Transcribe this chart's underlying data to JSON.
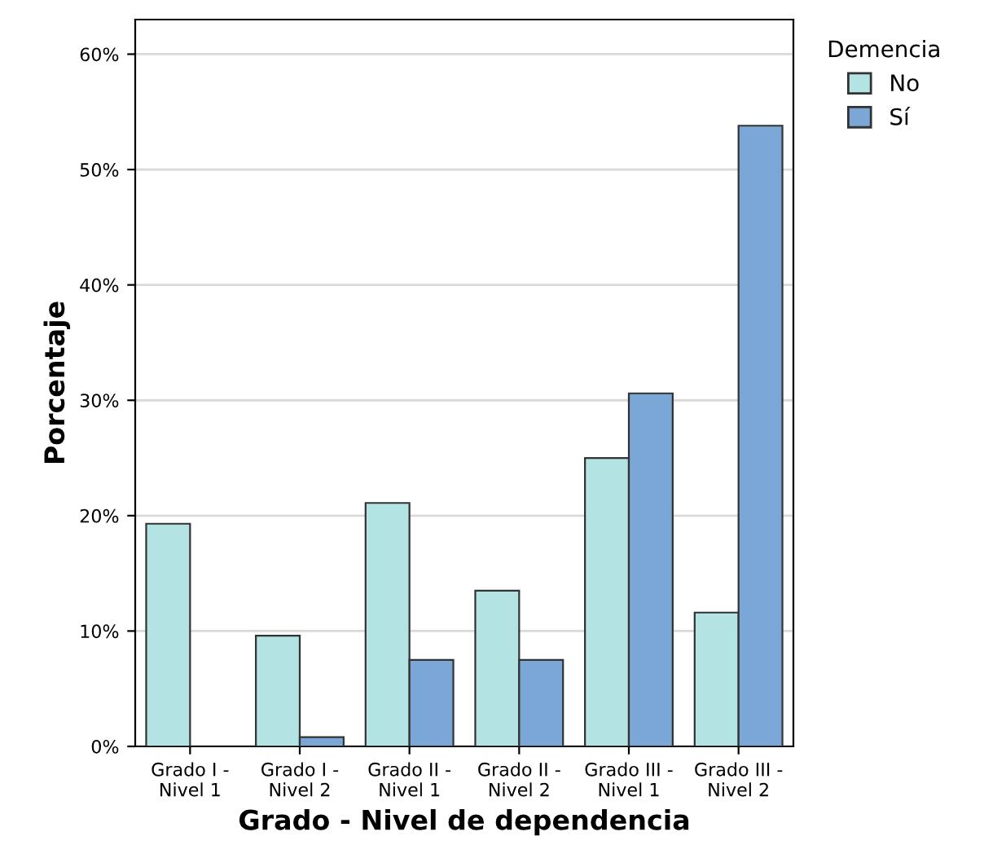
{
  "chart_data": {
    "type": "bar",
    "xlabel": "Grado - Nivel de dependencia",
    "ylabel": "Porcentaje",
    "legend_title": "Demencia",
    "categories": [
      "Grado I -\nNivel 1",
      "Grado I -\nNivel 2",
      "Grado II -\nNivel 1",
      "Grado II -\nNivel 2",
      "Grado III -\nNivel 1",
      "Grado III -\nNivel 2"
    ],
    "series": [
      {
        "name": "No",
        "color": "#b3e3e3",
        "values": [
          19.3,
          9.6,
          21.1,
          13.5,
          25.0,
          11.6
        ]
      },
      {
        "name": "Sí",
        "color": "#7ba7d6",
        "values": [
          null,
          0.8,
          7.5,
          7.5,
          30.6,
          53.8
        ]
      }
    ],
    "ylim": [
      0,
      63
    ],
    "yticks": [
      {
        "value": 0,
        "label": "0%"
      },
      {
        "value": 10,
        "label": "10%"
      },
      {
        "value": 20,
        "label": "20%"
      },
      {
        "value": 30,
        "label": "30%"
      },
      {
        "value": 40,
        "label": "40%"
      },
      {
        "value": 50,
        "label": "50%"
      },
      {
        "value": 60,
        "label": "60%"
      }
    ],
    "grid": "y",
    "legend": "top right"
  }
}
